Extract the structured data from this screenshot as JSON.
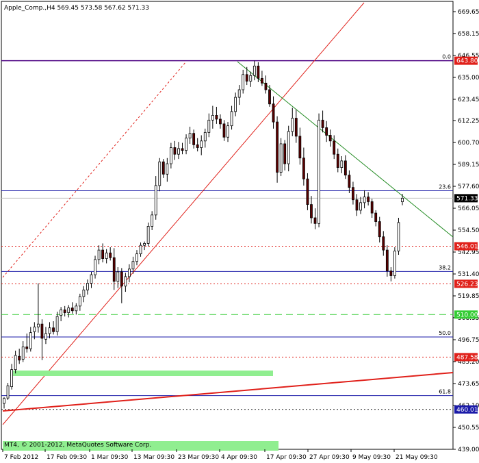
{
  "window": {
    "symbol_header": "Apple_Comp.,H4  569.45 573.58 567.62 571.33",
    "footer": "MT4, © 2001-2012, MetaQuotes Software Corp."
  },
  "chart_data": {
    "type": "candlestick",
    "symbol": "Apple_Comp.",
    "timeframe": "H4",
    "ohlc_header": {
      "open": 569.45,
      "high": 573.58,
      "low": 567.62,
      "close": 571.33
    },
    "ylim": [
      439.0,
      680.0
    ],
    "y_ticks": [
      "669.65",
      "658.15",
      "646.55",
      "635.00",
      "623.45",
      "612.25",
      "600.70",
      "589.15",
      "577.60",
      "566.05",
      "554.50",
      "542.95",
      "531.40",
      "519.85",
      "508.35",
      "496.75",
      "485.20",
      "473.65",
      "462.10",
      "450.55",
      "439.00"
    ],
    "x_ticks": [
      "7 Feb 2012",
      "17 Feb 09:30",
      "1 Mar 09:30",
      "13 Mar 09:30",
      "23 Mar 09:30",
      "4 Apr 09:30",
      "17 Apr 09:30",
      "27 Apr 09:30",
      "9 May 09:30",
      "21 May 09:30"
    ],
    "price_labels": [
      {
        "value": 643.8,
        "text": "643.80",
        "color": "#e0201a"
      },
      {
        "value": 571.33,
        "text": "571.33",
        "color": "#000000"
      },
      {
        "value": 546.01,
        "text": "546.01",
        "color": "#e0201a"
      },
      {
        "value": 526.23,
        "text": "526.23",
        "color": "#e0201a"
      },
      {
        "value": 510.0,
        "text": "510.00",
        "color": "#33cc33"
      },
      {
        "value": 487.58,
        "text": "487.58",
        "color": "#e0201a"
      },
      {
        "value": 460.01,
        "text": "460.01",
        "color": "#1a1aa8"
      }
    ],
    "fibonacci_levels": [
      {
        "label": "0.0",
        "price": 643.8
      },
      {
        "label": "23.6",
        "price": 575.25
      },
      {
        "label": "38.2",
        "price": 532.7
      },
      {
        "label": "50.0",
        "price": 498.2
      },
      {
        "label": "61.8",
        "price": 467.3
      }
    ],
    "horizontal_lines": [
      {
        "price": 546.01,
        "style": "dotted",
        "color": "#e0201a"
      },
      {
        "price": 526.23,
        "style": "dotted",
        "color": "#e0201a"
      },
      {
        "price": 510.0,
        "style": "dashed",
        "color": "#33cc33"
      },
      {
        "price": 487.58,
        "style": "dotted",
        "color": "#e0201a"
      },
      {
        "price": 460.01,
        "style": "dotted",
        "color": "#1a1a1a"
      }
    ],
    "candles": [
      [
        463.2,
        466.5,
        460.5,
        465.8
      ],
      [
        466.0,
        474.0,
        465.0,
        472.5
      ],
      [
        472.0,
        484.0,
        470.5,
        481.0
      ],
      [
        481.0,
        491.0,
        479.0,
        488.5
      ],
      [
        488.0,
        492.0,
        484.0,
        486.0
      ],
      [
        486.5,
        496.0,
        485.0,
        493.0
      ],
      [
        493.0,
        500.0,
        490.0,
        492.0
      ],
      [
        492.0,
        503.5,
        490.5,
        500.5
      ],
      [
        501.0,
        506.0,
        497.0,
        503.5
      ],
      [
        503.5,
        526.5,
        500.5,
        505.0
      ],
      [
        505.0,
        507.5,
        486.0,
        497.5
      ],
      [
        497.0,
        503.5,
        494.5,
        500.0
      ],
      [
        500.0,
        506.0,
        497.5,
        503.0
      ],
      [
        503.0,
        506.5,
        499.5,
        501.0
      ],
      [
        501.0,
        511.5,
        499.0,
        509.0
      ],
      [
        509.5,
        514.0,
        506.5,
        512.5
      ],
      [
        512.5,
        514.5,
        509.0,
        511.0
      ],
      [
        511.0,
        515.0,
        508.5,
        513.5
      ],
      [
        513.5,
        516.5,
        510.5,
        512.0
      ],
      [
        512.0,
        516.0,
        510.0,
        514.5
      ],
      [
        514.5,
        521.0,
        512.0,
        519.5
      ],
      [
        519.5,
        525.0,
        516.5,
        523.0
      ],
      [
        523.0,
        528.5,
        520.5,
        526.5
      ],
      [
        526.5,
        532.5,
        524.0,
        531.0
      ],
      [
        531.0,
        541.0,
        529.0,
        539.0
      ],
      [
        539.0,
        546.5,
        536.5,
        544.0
      ],
      [
        544.0,
        547.5,
        537.5,
        539.5
      ],
      [
        539.5,
        544.5,
        537.0,
        542.5
      ],
      [
        542.5,
        545.5,
        538.5,
        540.0
      ],
      [
        540.0,
        545.0,
        523.0,
        527.5
      ],
      [
        527.5,
        535.0,
        524.0,
        532.5
      ],
      [
        532.5,
        534.5,
        516.0,
        525.0
      ],
      [
        525.0,
        532.0,
        522.0,
        530.0
      ],
      [
        530.0,
        536.5,
        527.0,
        534.0
      ],
      [
        534.0,
        540.5,
        531.5,
        538.0
      ],
      [
        538.0,
        544.0,
        536.0,
        542.0
      ],
      [
        542.0,
        548.0,
        540.5,
        546.5
      ],
      [
        546.5,
        548.5,
        544.0,
        547.5
      ],
      [
        547.5,
        558.5,
        546.0,
        556.5
      ],
      [
        556.5,
        564.5,
        554.5,
        562.5
      ],
      [
        562.5,
        583.0,
        560.0,
        578.0
      ],
      [
        578.0,
        592.5,
        575.0,
        590.5
      ],
      [
        590.5,
        592.0,
        582.0,
        584.0
      ],
      [
        584.0,
        592.5,
        580.0,
        589.5
      ],
      [
        589.5,
        600.5,
        587.0,
        598.0
      ],
      [
        598.0,
        601.5,
        591.5,
        594.5
      ],
      [
        594.5,
        601.0,
        592.0,
        597.5
      ],
      [
        597.5,
        600.5,
        594.5,
        596.5
      ],
      [
        596.5,
        605.0,
        594.5,
        603.0
      ],
      [
        603.0,
        609.0,
        600.0,
        605.5
      ],
      [
        605.5,
        607.5,
        597.5,
        599.5
      ],
      [
        599.5,
        603.0,
        596.0,
        598.0
      ],
      [
        598.0,
        604.5,
        594.0,
        601.5
      ],
      [
        601.5,
        608.0,
        598.0,
        606.0
      ],
      [
        606.0,
        616.0,
        603.5,
        612.5
      ],
      [
        612.5,
        620.0,
        608.0,
        615.0
      ],
      [
        615.0,
        619.5,
        610.5,
        613.0
      ],
      [
        613.0,
        615.5,
        608.0,
        610.5
      ],
      [
        610.5,
        612.5,
        601.5,
        603.5
      ],
      [
        603.5,
        611.5,
        601.0,
        609.5
      ],
      [
        609.5,
        620.0,
        607.5,
        617.0
      ],
      [
        617.0,
        627.0,
        614.5,
        624.5
      ],
      [
        624.5,
        631.0,
        620.5,
        628.5
      ],
      [
        628.5,
        639.0,
        626.5,
        636.5
      ],
      [
        636.5,
        640.5,
        631.0,
        633.0
      ],
      [
        633.0,
        638.0,
        630.0,
        636.0
      ],
      [
        636.0,
        643.8,
        633.5,
        641.0
      ],
      [
        641.0,
        643.0,
        632.5,
        634.5
      ],
      [
        634.5,
        638.5,
        630.5,
        632.0
      ],
      [
        632.0,
        636.0,
        626.5,
        628.5
      ],
      [
        628.5,
        631.0,
        619.5,
        621.0
      ],
      [
        621.0,
        625.0,
        608.0,
        611.5
      ],
      [
        611.5,
        614.5,
        579.5,
        585.0
      ],
      [
        585.0,
        603.0,
        583.0,
        600.0
      ],
      [
        600.0,
        602.0,
        586.0,
        589.5
      ],
      [
        589.5,
        609.5,
        585.5,
        606.5
      ],
      [
        606.5,
        619.0,
        604.0,
        613.5
      ],
      [
        613.5,
        618.0,
        600.5,
        604.0
      ],
      [
        604.0,
        608.5,
        589.0,
        592.5
      ],
      [
        592.5,
        598.0,
        578.0,
        581.5
      ],
      [
        581.5,
        584.5,
        565.0,
        568.0
      ],
      [
        568.0,
        572.5,
        558.0,
        561.0
      ],
      [
        561.0,
        566.0,
        555.0,
        558.0
      ],
      [
        558.0,
        616.0,
        556.0,
        612.5
      ],
      [
        612.5,
        617.5,
        606.0,
        608.5
      ],
      [
        608.5,
        612.0,
        601.0,
        604.5
      ],
      [
        604.5,
        607.5,
        598.5,
        601.5
      ],
      [
        601.5,
        604.5,
        592.0,
        594.5
      ],
      [
        594.5,
        597.5,
        585.0,
        587.5
      ],
      [
        587.5,
        593.5,
        584.5,
        591.0
      ],
      [
        591.0,
        594.0,
        581.5,
        583.5
      ],
      [
        583.5,
        586.0,
        574.0,
        577.0
      ],
      [
        577.0,
        580.0,
        568.0,
        570.5
      ],
      [
        570.5,
        573.5,
        562.0,
        565.0
      ],
      [
        565.0,
        572.0,
        563.0,
        569.0
      ],
      [
        569.0,
        575.5,
        566.0,
        572.0
      ],
      [
        572.0,
        574.5,
        567.5,
        569.5
      ],
      [
        569.5,
        571.0,
        561.0,
        563.5
      ],
      [
        563.5,
        565.0,
        556.5,
        559.0
      ],
      [
        559.0,
        561.5,
        548.0,
        551.0
      ],
      [
        551.0,
        554.0,
        541.0,
        544.0
      ],
      [
        544.0,
        546.5,
        530.0,
        533.0
      ],
      [
        533.0,
        535.0,
        527.5,
        530.5
      ],
      [
        530.5,
        545.5,
        529.0,
        543.5
      ],
      [
        543.5,
        561.0,
        541.5,
        558.5
      ],
      [
        569.45,
        573.58,
        567.62,
        571.33
      ]
    ],
    "trendlines": [
      {
        "name": "pitchfork-median",
        "color": "#e0201a",
        "style": "solid"
      },
      {
        "name": "pitchfork-parallel",
        "color": "#e0201a",
        "style": "dotted"
      },
      {
        "name": "downtrend",
        "color": "#228b22",
        "style": "solid"
      },
      {
        "name": "support-trendline",
        "color": "#e0201a",
        "style": "solid"
      }
    ],
    "highlight_bars": [
      {
        "color": "#90ee90"
      },
      {
        "color": "#90ee90"
      }
    ]
  }
}
